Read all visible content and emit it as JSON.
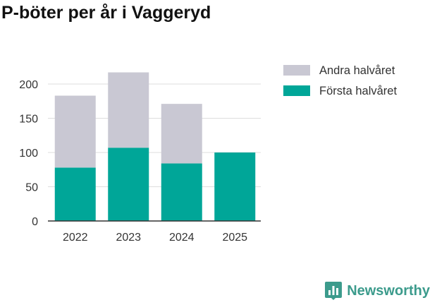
{
  "chart_data": {
    "type": "bar",
    "stacked": true,
    "title": "P-böter per år i Vaggeryd",
    "xlabel": "",
    "ylabel": "",
    "categories": [
      "2022",
      "2023",
      "2024",
      "2025"
    ],
    "series": [
      {
        "name": "Första halvåret",
        "color": "#00a698",
        "values": [
          78,
          107,
          84,
          100
        ]
      },
      {
        "name": "Andra halvåret",
        "color": "#c9c8d3",
        "values": [
          105,
          110,
          87,
          0
        ]
      }
    ],
    "ylim": [
      0,
      230
    ],
    "yticks": [
      0,
      50,
      100,
      150,
      200
    ],
    "grid": true,
    "legend_position": "top-right"
  },
  "brand": {
    "name": "Newsworthy",
    "logo_icon": "bar-chart-badge-icon",
    "color": "#3c9b8c"
  }
}
